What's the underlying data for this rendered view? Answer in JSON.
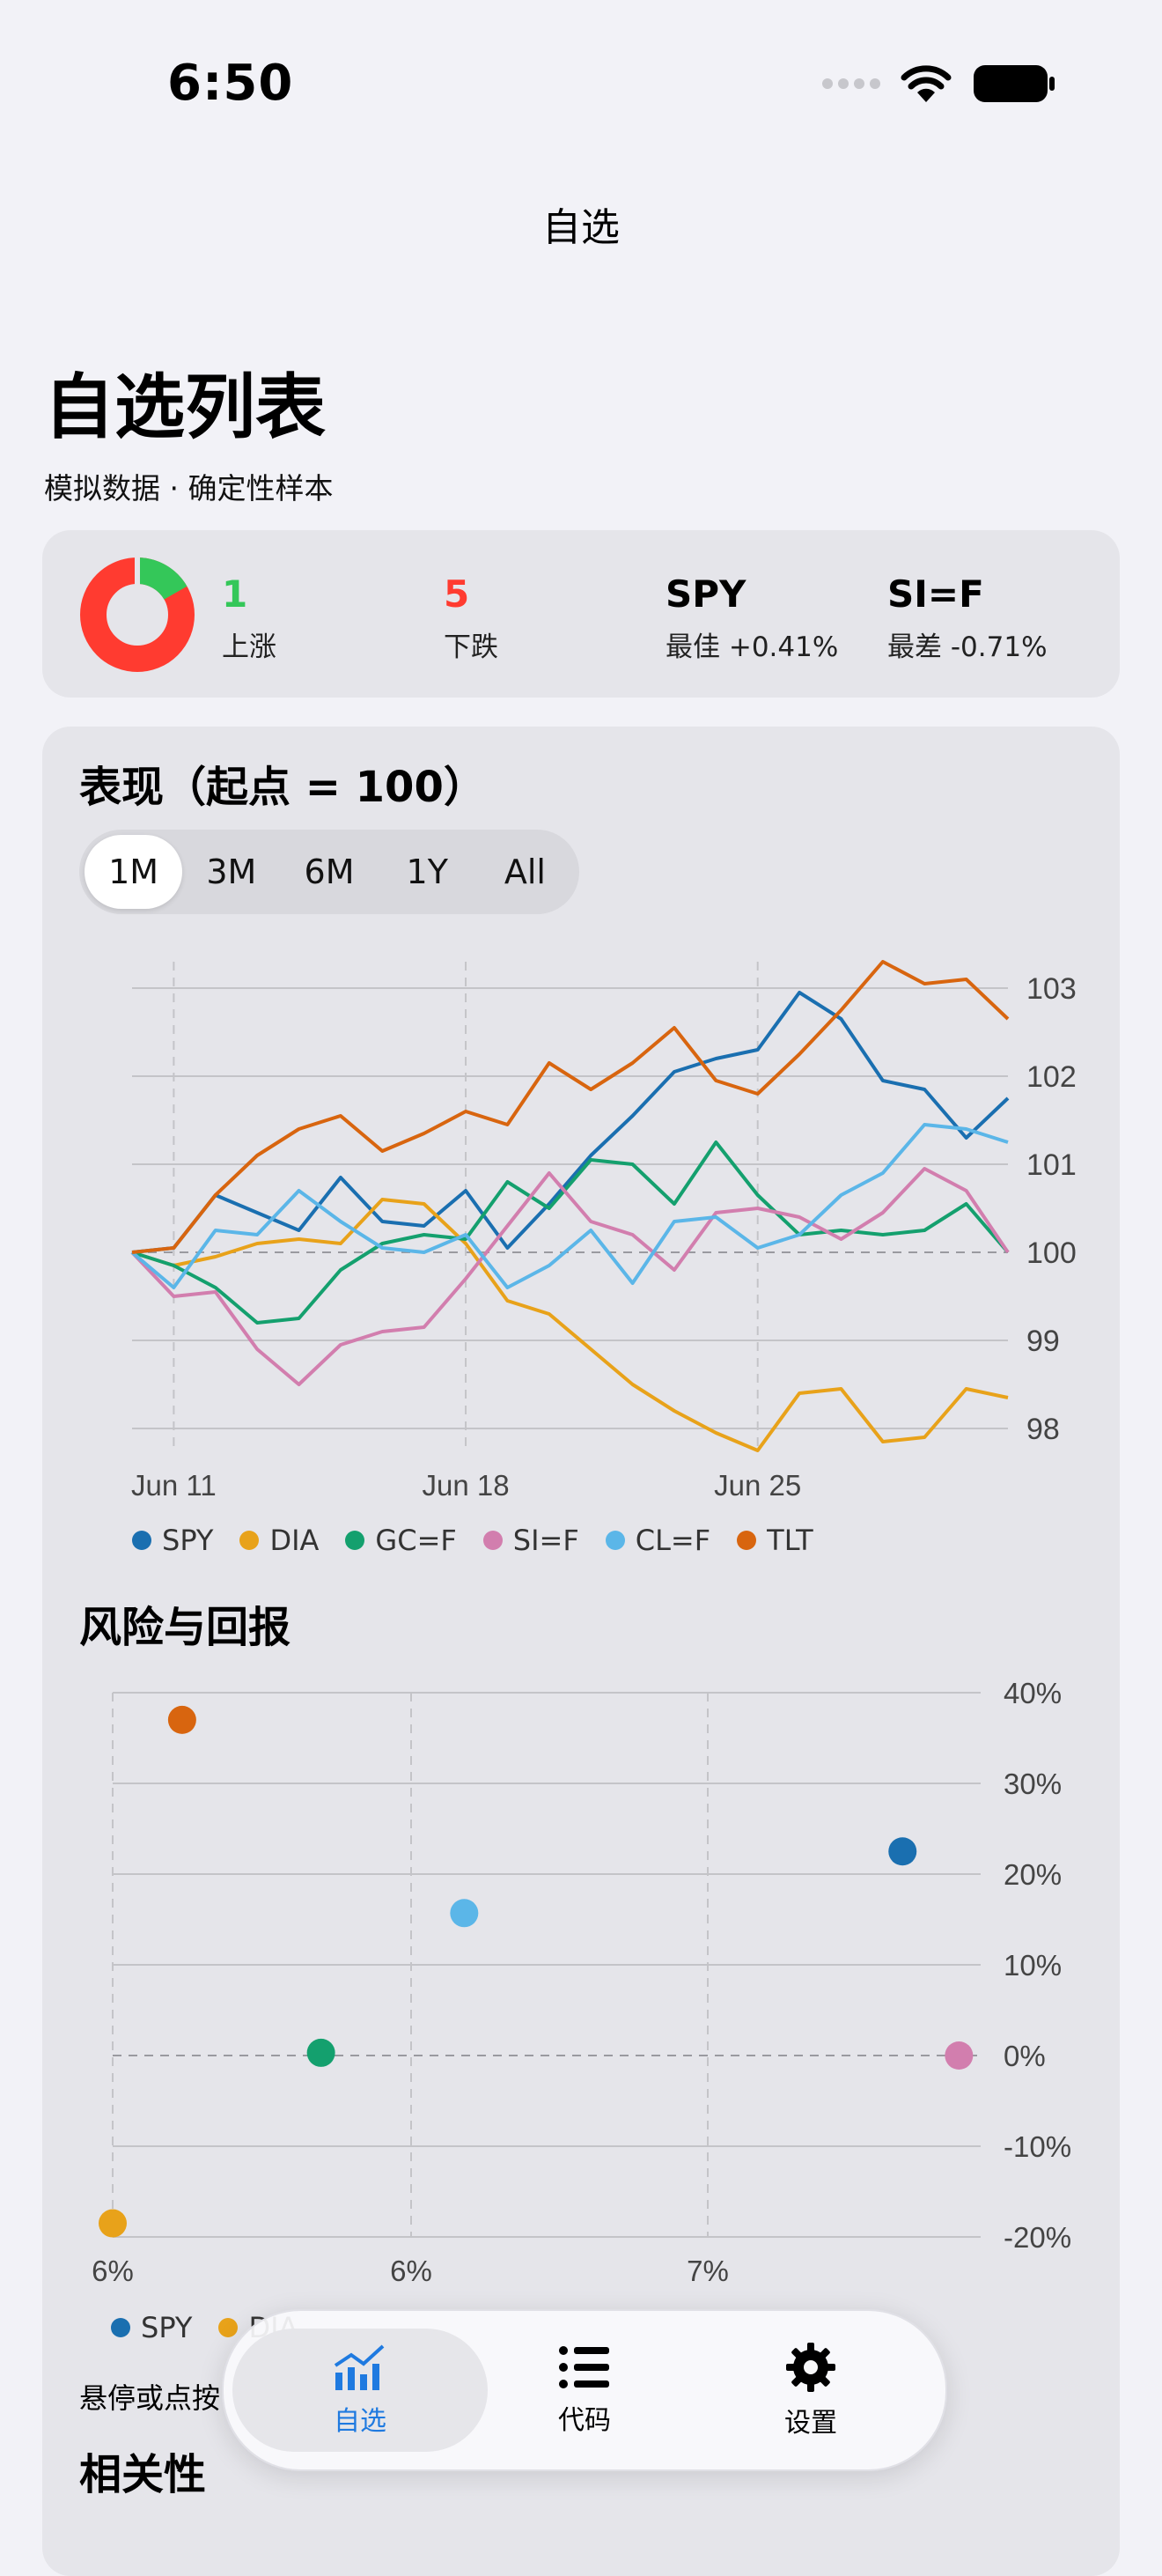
{
  "status_bar": {
    "time": "6:50"
  },
  "nav": {
    "title": "自选"
  },
  "page": {
    "title": "自选列表",
    "subtitle": "模拟数据 · 确定性样本"
  },
  "summary": {
    "up_count": "1",
    "up_label": "上涨",
    "down_count": "5",
    "down_label": "下跌",
    "best_symbol": "SPY",
    "best_label": "最佳 +0.41%",
    "worst_symbol": "SI=F",
    "worst_label": "最差 -0.71%",
    "colors": {
      "up": "#34C759",
      "down": "#FF3B30"
    },
    "up_fraction": 0.167
  },
  "performance": {
    "title": "表现（起点 = 100）",
    "ranges": [
      "1M",
      "3M",
      "6M",
      "1Y",
      "All"
    ],
    "selected_range": "1M"
  },
  "risk": {
    "title": "风险与回报"
  },
  "hint_text": "悬停或点按",
  "correlation": {
    "title": "相关性"
  },
  "series_colors": {
    "SPY": "#1A6FB0",
    "DIA": "#E8A21A",
    "GC=F": "#14A06E",
    "SI=F": "#D27EAE",
    "CL=F": "#5BB6E8",
    "TLT": "#D8650F"
  },
  "chart_data": [
    {
      "type": "line",
      "x_ticks": [
        "Jun 11",
        "Jun 18",
        "Jun 25"
      ],
      "x": [
        "Jun 10",
        "Jun 11",
        "Jun 12",
        "Jun 13",
        "Jun 14",
        "Jun 15",
        "Jun 16",
        "Jun 17",
        "Jun 18",
        "Jun 19",
        "Jun 20",
        "Jun 21",
        "Jun 22",
        "Jun 23",
        "Jun 24",
        "Jun 25",
        "Jun 26",
        "Jun 27",
        "Jun 28",
        "Jun 29",
        "Jun 30",
        "Jul 1"
      ],
      "y_ticks": [
        98,
        99,
        100,
        101,
        102,
        103
      ],
      "ylim": [
        97.8,
        103.3
      ],
      "baseline": 100,
      "series": [
        {
          "name": "SPY",
          "values": [
            100,
            100.05,
            100.65,
            100.45,
            100.25,
            100.85,
            100.35,
            100.3,
            100.7,
            100.05,
            100.55,
            101.1,
            101.55,
            102.05,
            102.2,
            102.3,
            102.95,
            102.65,
            101.95,
            101.85,
            101.3,
            101.75
          ]
        },
        {
          "name": "DIA",
          "values": [
            100,
            99.85,
            99.95,
            100.1,
            100.15,
            100.1,
            100.6,
            100.55,
            100.1,
            99.45,
            99.3,
            98.9,
            98.5,
            98.2,
            97.95,
            97.75,
            98.4,
            98.45,
            97.85,
            97.9,
            98.45,
            98.35
          ]
        },
        {
          "name": "GC=F",
          "values": [
            100,
            99.85,
            99.6,
            99.2,
            99.25,
            99.8,
            100.1,
            100.2,
            100.15,
            100.8,
            100.5,
            101.05,
            101.0,
            100.55,
            101.25,
            100.65,
            100.2,
            100.25,
            100.2,
            100.25,
            100.55,
            100.0
          ]
        },
        {
          "name": "SI=F",
          "values": [
            100,
            99.5,
            99.55,
            98.9,
            98.5,
            98.95,
            99.1,
            99.15,
            99.7,
            100.3,
            100.9,
            100.35,
            100.2,
            99.8,
            100.45,
            100.5,
            100.4,
            100.15,
            100.45,
            100.95,
            100.7,
            100.0
          ]
        },
        {
          "name": "CL=F",
          "values": [
            100,
            99.6,
            100.25,
            100.2,
            100.7,
            100.35,
            100.05,
            100.0,
            100.2,
            99.6,
            99.85,
            100.25,
            99.65,
            100.35,
            100.4,
            100.05,
            100.2,
            100.65,
            100.9,
            101.45,
            101.4,
            101.25
          ]
        },
        {
          "name": "TLT",
          "values": [
            100,
            100.05,
            100.65,
            101.1,
            101.4,
            101.55,
            101.15,
            101.35,
            101.6,
            101.45,
            102.15,
            101.85,
            102.15,
            102.55,
            101.95,
            101.8,
            102.25,
            102.75,
            103.3,
            103.05,
            103.1,
            102.65
          ]
        }
      ]
    },
    {
      "type": "scatter",
      "x_ticks": [
        "6%",
        "6%",
        "7%"
      ],
      "y_ticks": [
        "40%",
        "30%",
        "20%",
        "10%",
        "0%",
        "-10%",
        "-20%"
      ],
      "xlim": [
        5.5,
        7.5
      ],
      "ylim": [
        -20,
        40
      ],
      "points": [
        {
          "name": "TLT",
          "x": 5.66,
          "y": 37
        },
        {
          "name": "SPY",
          "x": 7.32,
          "y": 22.5
        },
        {
          "name": "CL=F",
          "x": 6.31,
          "y": 15.7
        },
        {
          "name": "GC=F",
          "x": 5.98,
          "y": 0.3
        },
        {
          "name": "SI=F",
          "x": 7.45,
          "y": 0
        },
        {
          "name": "DIA",
          "x": 5.5,
          "y": -18.5
        }
      ]
    }
  ]
}
